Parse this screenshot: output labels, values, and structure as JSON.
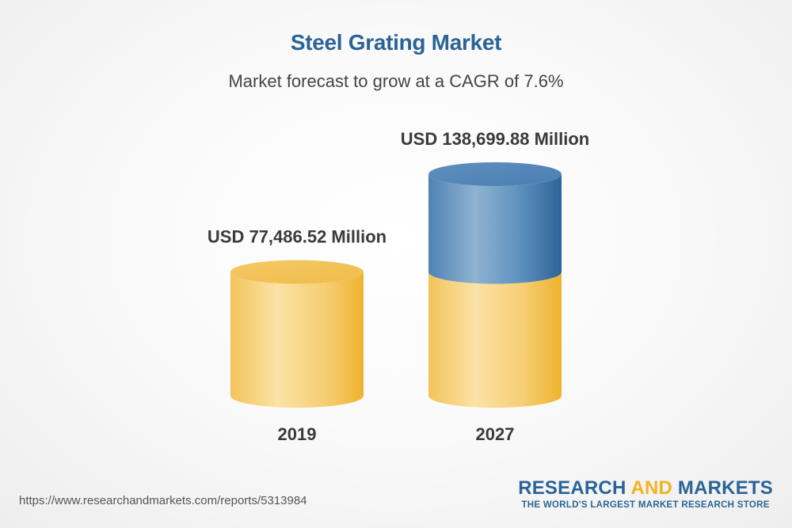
{
  "title": "Steel Grating Market",
  "subtitle": "Market forecast to grow at a CAGR of 7.6%",
  "chart_data": {
    "type": "bar",
    "categories": [
      "2019",
      "2027"
    ],
    "values": [
      77486.52,
      138699.88
    ],
    "value_labels": [
      "USD 77,486.52 Million",
      "USD 138,699.88 Million"
    ],
    "title": "Steel Grating Market",
    "subtitle": "Market forecast to grow at a CAGR of 7.6%",
    "xlabel": "",
    "ylabel": "",
    "grid": false,
    "legend": "none"
  },
  "footer": {
    "url": "https://www.researchandmarkets.com/reports/5313984",
    "brand_part1": "RESEARCH ",
    "brand_part2": "AND",
    "brand_part3": " MARKETS",
    "tagline": "THE WORLD'S LARGEST MARKET RESEARCH STORE"
  },
  "colors": {
    "title": "#2a6496",
    "gold": "#f0b323",
    "blue": "#2a6496"
  }
}
